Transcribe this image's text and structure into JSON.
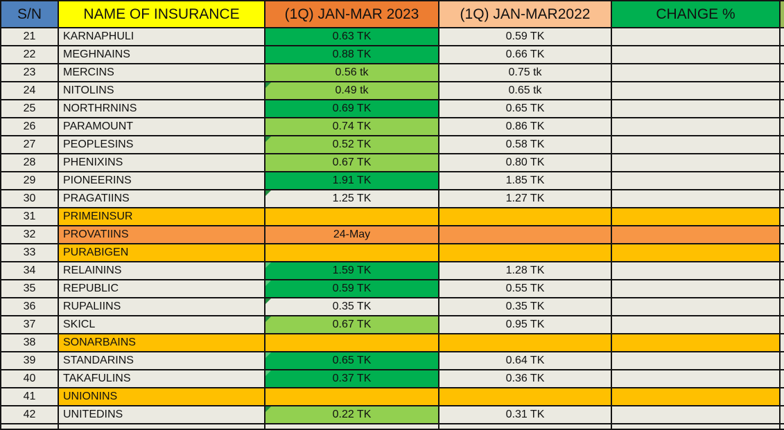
{
  "header": {
    "columns": [
      {
        "label": "S/N"
      },
      {
        "label": "NAME OF INSURANCE"
      },
      {
        "label": "(1Q) JAN-MAR 2023"
      },
      {
        "label": "(1Q) JAN-MAR2022"
      },
      {
        "label": "CHANGE %"
      },
      {
        "label": ""
      }
    ]
  },
  "colors": {
    "header_sn": "#4F81BD",
    "header_name": "#FFFF00",
    "header_2023": "#ED7D31",
    "header_2022": "#FAC090",
    "header_change": "#00B050",
    "header_sliver": "#9BBB59",
    "cell_dark_green": "#00B050",
    "cell_light_green": "#92D050",
    "cell_amber": "#FFC000",
    "cell_orange": "#F79646",
    "cell_beige": "#EBEAE1",
    "grid_border": "#141414"
  },
  "rows": [
    {
      "sn": "21",
      "name": "KARNAPHULI",
      "v2023": "0.63 TK",
      "v2022": "0.59 TK",
      "change": "",
      "fill_2023": "darkgreen",
      "row_fill": "",
      "corner": false
    },
    {
      "sn": "22",
      "name": "MEGHNAINS",
      "v2023": "0.88 TK",
      "v2022": "0.66 TK",
      "change": "",
      "fill_2023": "darkgreen",
      "row_fill": "",
      "corner": false
    },
    {
      "sn": "23",
      "name": "MERCINS",
      "v2023": "0.56 tk",
      "v2022": "0.75 tk",
      "change": "",
      "fill_2023": "lightgreen",
      "row_fill": "",
      "corner": false
    },
    {
      "sn": "24",
      "name": "NITOLINS",
      "v2023": "0.49 tk",
      "v2022": "0.65 tk",
      "change": "",
      "fill_2023": "lightgreen",
      "row_fill": "",
      "corner": true
    },
    {
      "sn": "25",
      "name": "NORTHRNINS",
      "v2023": "0.69 TK",
      "v2022": "0.65 TK",
      "change": "",
      "fill_2023": "darkgreen",
      "row_fill": "",
      "corner": false
    },
    {
      "sn": "26",
      "name": "PARAMOUNT",
      "v2023": "0.74 TK",
      "v2022": "0.86 TK",
      "change": "",
      "fill_2023": "lightgreen",
      "row_fill": "",
      "corner": false
    },
    {
      "sn": "27",
      "name": "PEOPLESINS",
      "v2023": "0.52 TK",
      "v2022": "0.58 TK",
      "change": "",
      "fill_2023": "lightgreen",
      "row_fill": "",
      "corner": true
    },
    {
      "sn": "28",
      "name": "PHENIXINS",
      "v2023": "0.67 TK",
      "v2022": "0.80 TK",
      "change": "",
      "fill_2023": "lightgreen",
      "row_fill": "",
      "corner": false
    },
    {
      "sn": "29",
      "name": "PIONEERINS",
      "v2023": "1.91 TK",
      "v2022": "1.85 TK",
      "change": "",
      "fill_2023": "darkgreen",
      "row_fill": "",
      "corner": false
    },
    {
      "sn": "30",
      "name": "PRAGATIINS",
      "v2023": "1.25 TK",
      "v2022": "1.27 TK",
      "change": "",
      "fill_2023": "none",
      "row_fill": "",
      "corner": true
    },
    {
      "sn": "31",
      "name": "PRIMEINSUR",
      "v2023": "",
      "v2022": "",
      "change": "",
      "fill_2023": "none",
      "row_fill": "amber",
      "corner": false
    },
    {
      "sn": "32",
      "name": "PROVATIINS",
      "v2023": "24-May",
      "v2022": "",
      "change": "",
      "fill_2023": "none",
      "row_fill": "orange",
      "corner": false
    },
    {
      "sn": "33",
      "name": "PURABIGEN",
      "v2023": "",
      "v2022": "",
      "change": "",
      "fill_2023": "none",
      "row_fill": "amber",
      "corner": false
    },
    {
      "sn": "34",
      "name": "RELAININS",
      "v2023": "1.59 TK",
      "v2022": "1.28 TK",
      "change": "",
      "fill_2023": "darkgreen",
      "row_fill": "",
      "corner": true
    },
    {
      "sn": "35",
      "name": "REPUBLIC",
      "v2023": "0.59 TK",
      "v2022": "0.55 TK",
      "change": "",
      "fill_2023": "darkgreen",
      "row_fill": "",
      "corner": true
    },
    {
      "sn": "36",
      "name": "RUPALIINS",
      "v2023": "0.35 TK",
      "v2022": "0.35 TK",
      "change": "",
      "fill_2023": "none",
      "row_fill": "",
      "corner": true
    },
    {
      "sn": "37",
      "name": "SKICL",
      "v2023": "0.67 TK",
      "v2022": "0.95 TK",
      "change": "",
      "fill_2023": "lightgreen",
      "row_fill": "",
      "corner": true
    },
    {
      "sn": "38",
      "name": "SONARBAINS",
      "v2023": "",
      "v2022": "",
      "change": "",
      "fill_2023": "none",
      "row_fill": "amber",
      "corner": false
    },
    {
      "sn": "39",
      "name": "STANDARINS",
      "v2023": "0.65 TK",
      "v2022": "0.64 TK",
      "change": "",
      "fill_2023": "darkgreen",
      "row_fill": "",
      "corner": true
    },
    {
      "sn": "40",
      "name": "TAKAFULINS",
      "v2023": "0.37 TK",
      "v2022": "0.36 TK",
      "change": "",
      "fill_2023": "darkgreen",
      "row_fill": "",
      "corner": true
    },
    {
      "sn": "41",
      "name": "UNIONINS",
      "v2023": "",
      "v2022": "",
      "change": "",
      "fill_2023": "none",
      "row_fill": "amber",
      "corner": false
    },
    {
      "sn": "42",
      "name": "UNITEDINS",
      "v2023": "0.22 TK",
      "v2022": "0.31 TK",
      "change": "",
      "fill_2023": "lightgreen",
      "row_fill": "",
      "corner": true
    }
  ]
}
